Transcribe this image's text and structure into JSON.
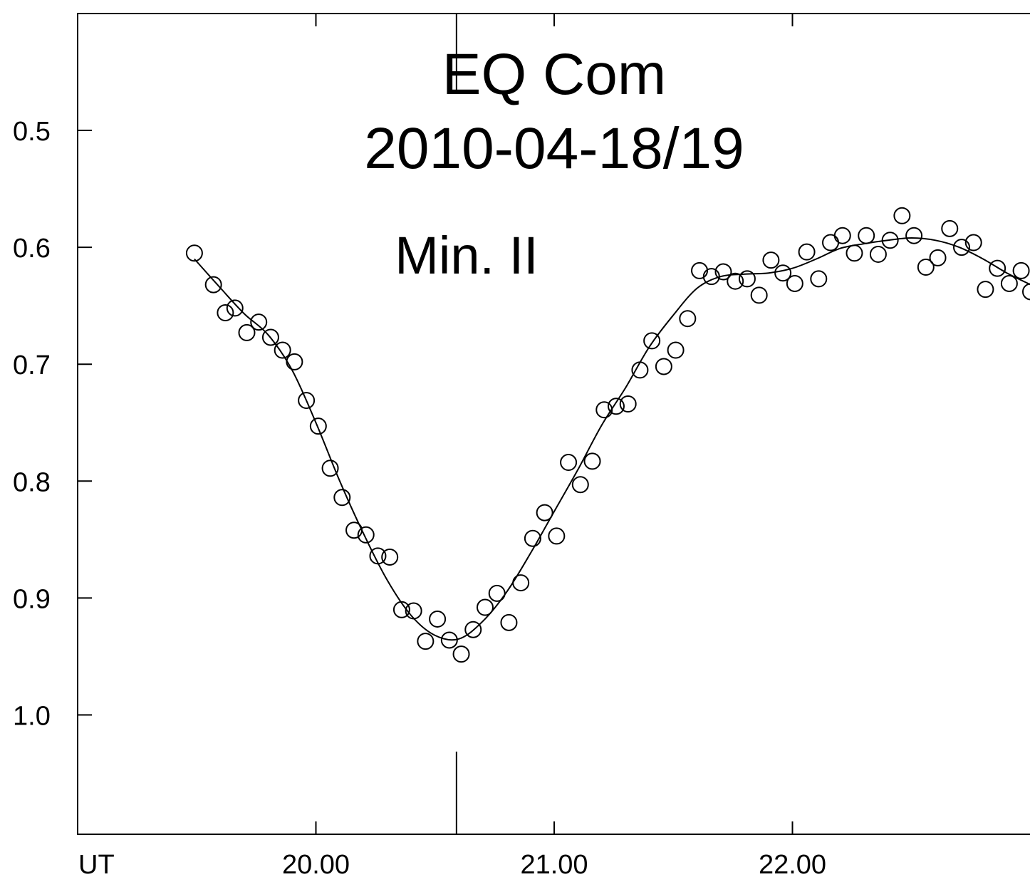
{
  "chart_data": {
    "type": "scatter",
    "title": [
      "EQ Com",
      "2010-04-18/19"
    ],
    "annotations": [
      "Min. II"
    ],
    "xlabel": "UT",
    "ylabel": "",
    "xlim": [
      19.0,
      23.0
    ],
    "ylim": [
      1.1,
      0.4
    ],
    "y_inverted": true,
    "grid": false,
    "x_ticks": [
      {
        "value": 20.0,
        "label": "20.00"
      },
      {
        "value": 21.0,
        "label": "21.00"
      },
      {
        "value": 22.0,
        "label": "22.00"
      }
    ],
    "y_ticks": [
      {
        "value": 0.5,
        "label": "0.5"
      },
      {
        "value": 0.6,
        "label": "0.6"
      },
      {
        "value": 0.7,
        "label": "0.7"
      },
      {
        "value": 0.8,
        "label": "0.8"
      },
      {
        "value": 0.9,
        "label": "0.9"
      },
      {
        "value": 1.0,
        "label": "1.0"
      }
    ],
    "minimum_marker_x": 20.59,
    "series": [
      {
        "kind": "points",
        "marker": "open-circle",
        "x": [
          19.49,
          19.57,
          19.62,
          19.66,
          19.71,
          19.76,
          19.81,
          19.86,
          19.91,
          19.96,
          20.01,
          20.06,
          20.11,
          20.16,
          20.21,
          20.26,
          20.31,
          20.36,
          20.41,
          20.46,
          20.51,
          20.56,
          20.61,
          20.66,
          20.71,
          20.76,
          20.81,
          20.86,
          20.91,
          20.96,
          21.01,
          21.06,
          21.11,
          21.16,
          21.21,
          21.26,
          21.31,
          21.36,
          21.41,
          21.46,
          21.51,
          21.56,
          21.61,
          21.66,
          21.71,
          21.76,
          21.81,
          21.86,
          21.91,
          21.96,
          22.01,
          22.06,
          22.11,
          22.16,
          22.21,
          22.26,
          22.31,
          22.36,
          22.41,
          22.46,
          22.51,
          22.56,
          22.61,
          22.66,
          22.71,
          22.76,
          22.81,
          22.86,
          22.91,
          22.96,
          23.0
        ],
        "y": [
          0.605,
          0.632,
          0.656,
          0.652,
          0.673,
          0.664,
          0.677,
          0.688,
          0.698,
          0.731,
          0.753,
          0.789,
          0.814,
          0.842,
          0.846,
          0.864,
          0.865,
          0.91,
          0.911,
          0.937,
          0.918,
          0.936,
          0.948,
          0.927,
          0.908,
          0.896,
          0.921,
          0.887,
          0.849,
          0.827,
          0.847,
          0.784,
          0.803,
          0.783,
          0.739,
          0.736,
          0.734,
          0.705,
          0.68,
          0.702,
          0.688,
          0.661,
          0.62,
          0.625,
          0.621,
          0.629,
          0.627,
          0.641,
          0.611,
          0.622,
          0.631,
          0.604,
          0.627,
          0.596,
          0.59,
          0.605,
          0.59,
          0.606,
          0.594,
          0.573,
          0.59,
          0.617,
          0.609,
          0.584,
          0.6,
          0.596,
          0.636,
          0.618,
          0.631,
          0.62,
          0.638
        ]
      },
      {
        "kind": "fit-curve",
        "x": [
          19.49,
          19.6,
          19.7,
          19.8,
          19.9,
          20.0,
          20.1,
          20.2,
          20.3,
          20.4,
          20.5,
          20.6,
          20.7,
          20.8,
          20.9,
          21.0,
          21.1,
          21.2,
          21.3,
          21.4,
          21.5,
          21.6,
          21.7,
          21.8,
          21.9,
          22.0,
          22.1,
          22.2,
          22.3,
          22.4,
          22.5,
          22.6,
          22.7,
          22.8,
          22.9,
          23.0
        ],
        "y": [
          0.61,
          0.635,
          0.657,
          0.675,
          0.705,
          0.75,
          0.8,
          0.845,
          0.885,
          0.915,
          0.932,
          0.935,
          0.92,
          0.895,
          0.862,
          0.826,
          0.79,
          0.752,
          0.72,
          0.685,
          0.658,
          0.635,
          0.625,
          0.623,
          0.622,
          0.618,
          0.61,
          0.601,
          0.597,
          0.594,
          0.592,
          0.594,
          0.6,
          0.61,
          0.622,
          0.632
        ]
      }
    ]
  }
}
